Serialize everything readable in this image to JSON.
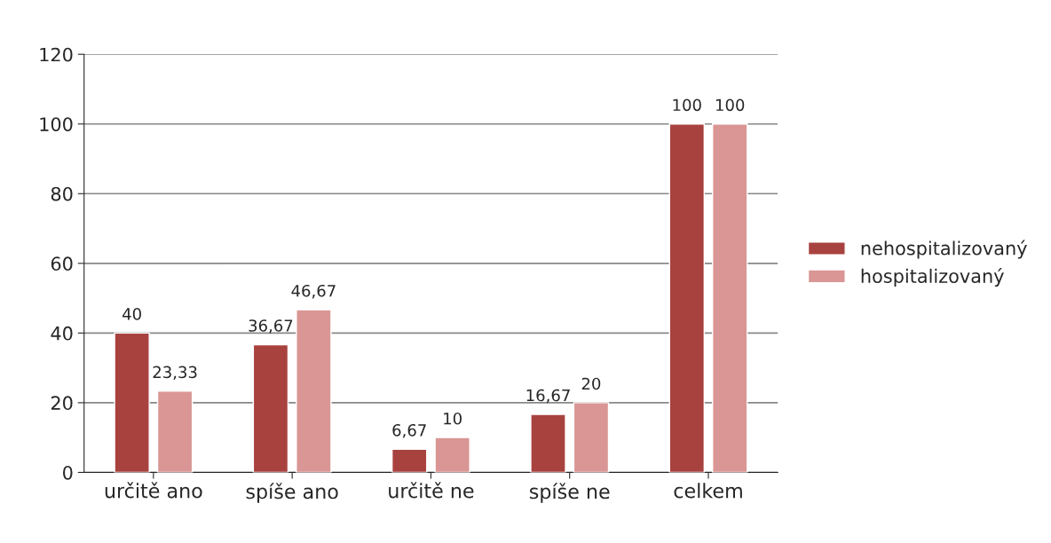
{
  "chart_data": {
    "type": "bar",
    "categories": [
      "určitě ano",
      "spíše ano",
      "určitě ne",
      "spíše ne",
      "celkem"
    ],
    "series": [
      {
        "name": "nehospitalizovaný",
        "color": "#a8423f",
        "values": [
          40,
          36.67,
          6.67,
          16.67,
          100
        ],
        "value_labels": [
          "40",
          "36,67",
          "6,67",
          "16,67",
          "100"
        ]
      },
      {
        "name": "hospitalizovaný",
        "color": "#d99694",
        "values": [
          23.33,
          46.67,
          10,
          20,
          100
        ],
        "value_labels": [
          "23,33",
          "46,67",
          "10",
          "20",
          "100"
        ]
      }
    ],
    "ylim": [
      0,
      120
    ],
    "yticks": [
      0,
      20,
      40,
      60,
      80,
      100,
      120
    ],
    "grid": "y",
    "legend": "right"
  }
}
